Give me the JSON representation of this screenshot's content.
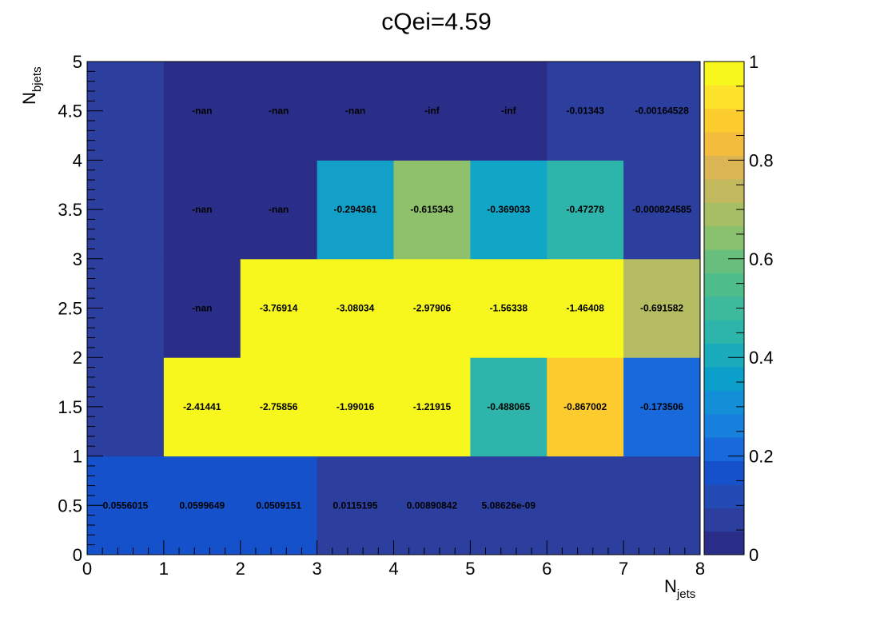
{
  "chart_data": {
    "type": "heatmap",
    "title": "cQei=4.59",
    "xlabel": {
      "main": "N",
      "sub": "jets"
    },
    "ylabel": {
      "main": "N",
      "sub": "bjets"
    },
    "xlim": [
      0,
      8
    ],
    "ylim": [
      0,
      5
    ],
    "x_bin_edges": [
      0,
      1,
      2,
      3,
      4,
      5,
      6,
      7,
      8
    ],
    "y_bin_edges": [
      0,
      1,
      2,
      3,
      4,
      5
    ],
    "x_ticks": [
      "0",
      "1",
      "2",
      "3",
      "4",
      "5",
      "6",
      "7",
      "8"
    ],
    "y_ticks": [
      "0",
      "0.5",
      "1",
      "1.5",
      "2",
      "2.5",
      "3",
      "3.5",
      "4",
      "4.5",
      "5"
    ],
    "colorbar": {
      "range": [
        0,
        1
      ],
      "ticks": [
        "0",
        "0.2",
        "0.4",
        "0.6",
        "0.8",
        "1"
      ],
      "palette": [
        "#2b2e89",
        "#2c3f9f",
        "#234bb6",
        "#1651cc",
        "#1769dc",
        "#1880dd",
        "#128fd6",
        "#0c9fca",
        "#1aabbd",
        "#2db4ab",
        "#3cba9b",
        "#4fbc8c",
        "#68bf7d",
        "#89c06e",
        "#a6be64",
        "#c2b85e",
        "#dbb453",
        "#f3bc3d",
        "#fccb2d",
        "#fde32b",
        "#f7f61d"
      ]
    },
    "cells": [
      {
        "x": 0,
        "y": 0,
        "label": "0.0556015",
        "color": "#1651cc"
      },
      {
        "x": 1,
        "y": 0,
        "label": "0.0599649",
        "color": "#1651cc"
      },
      {
        "x": 2,
        "y": 0,
        "label": "0.0509151",
        "color": "#1651cc"
      },
      {
        "x": 3,
        "y": 0,
        "label": "0.0115195",
        "color": "#2c3f9f"
      },
      {
        "x": 4,
        "y": 0,
        "label": "0.00890842",
        "color": "#2c3f9f"
      },
      {
        "x": 5,
        "y": 0,
        "label": "5.08626e-09",
        "color": "#2c3f9f"
      },
      {
        "x": 6,
        "y": 0,
        "label": "",
        "color": "#2c3f9f"
      },
      {
        "x": 7,
        "y": 0,
        "label": "",
        "color": "#2c3f9f"
      },
      {
        "x": 0,
        "y": 1,
        "label": "",
        "color": "#2c3f9f"
      },
      {
        "x": 1,
        "y": 1,
        "label": "-2.41441",
        "color": "#f7f61d"
      },
      {
        "x": 2,
        "y": 1,
        "label": "-2.75856",
        "color": "#f7f61d"
      },
      {
        "x": 3,
        "y": 1,
        "label": "-1.99016",
        "color": "#f7f61d"
      },
      {
        "x": 4,
        "y": 1,
        "label": "-1.21915",
        "color": "#f7f61d"
      },
      {
        "x": 5,
        "y": 1,
        "label": "-0.488065",
        "color": "#2db4ab"
      },
      {
        "x": 6,
        "y": 1,
        "label": "-0.867002",
        "color": "#fccb2d"
      },
      {
        "x": 7,
        "y": 1,
        "label": "-0.173506",
        "color": "#1769dc"
      },
      {
        "x": 0,
        "y": 2,
        "label": "",
        "color": "#2c3f9f"
      },
      {
        "x": 1,
        "y": 2,
        "label": "-nan",
        "color": "#2b2e89"
      },
      {
        "x": 2,
        "y": 2,
        "label": "-3.76914",
        "color": "#f7f61d"
      },
      {
        "x": 3,
        "y": 2,
        "label": "-3.08034",
        "color": "#f7f61d"
      },
      {
        "x": 4,
        "y": 2,
        "label": "-2.97906",
        "color": "#f7f61d"
      },
      {
        "x": 5,
        "y": 2,
        "label": "-1.56338",
        "color": "#f7f61d"
      },
      {
        "x": 6,
        "y": 2,
        "label": "-1.46408",
        "color": "#f7f61d"
      },
      {
        "x": 7,
        "y": 2,
        "label": "-0.691582",
        "color": "#b5bc62"
      },
      {
        "x": 0,
        "y": 3,
        "label": "",
        "color": "#2c3f9f"
      },
      {
        "x": 1,
        "y": 3,
        "label": "-nan",
        "color": "#2b2e89"
      },
      {
        "x": 2,
        "y": 3,
        "label": "-nan",
        "color": "#2b2e89"
      },
      {
        "x": 3,
        "y": 3,
        "label": "-0.294361",
        "color": "#12a0c8"
      },
      {
        "x": 4,
        "y": 3,
        "label": "-0.615343",
        "color": "#8fc06c"
      },
      {
        "x": 5,
        "y": 3,
        "label": "-0.369033",
        "color": "#12a6c6"
      },
      {
        "x": 6,
        "y": 3,
        "label": "-0.47278",
        "color": "#2db4ab"
      },
      {
        "x": 7,
        "y": 3,
        "label": "-0.000824585",
        "color": "#2c3f9f"
      },
      {
        "x": 0,
        "y": 4,
        "label": "",
        "color": "#2c3f9f"
      },
      {
        "x": 1,
        "y": 4,
        "label": "-nan",
        "color": "#2b2e89"
      },
      {
        "x": 2,
        "y": 4,
        "label": "-nan",
        "color": "#2b2e89"
      },
      {
        "x": 3,
        "y": 4,
        "label": "-nan",
        "color": "#2b2e89"
      },
      {
        "x": 4,
        "y": 4,
        "label": "-inf",
        "color": "#2b2e89"
      },
      {
        "x": 5,
        "y": 4,
        "label": "-inf",
        "color": "#2b2e89"
      },
      {
        "x": 6,
        "y": 4,
        "label": "-0.01343",
        "color": "#2c3f9f"
      },
      {
        "x": 7,
        "y": 4,
        "label": "-0.00164528",
        "color": "#2c3f9f"
      }
    ]
  }
}
